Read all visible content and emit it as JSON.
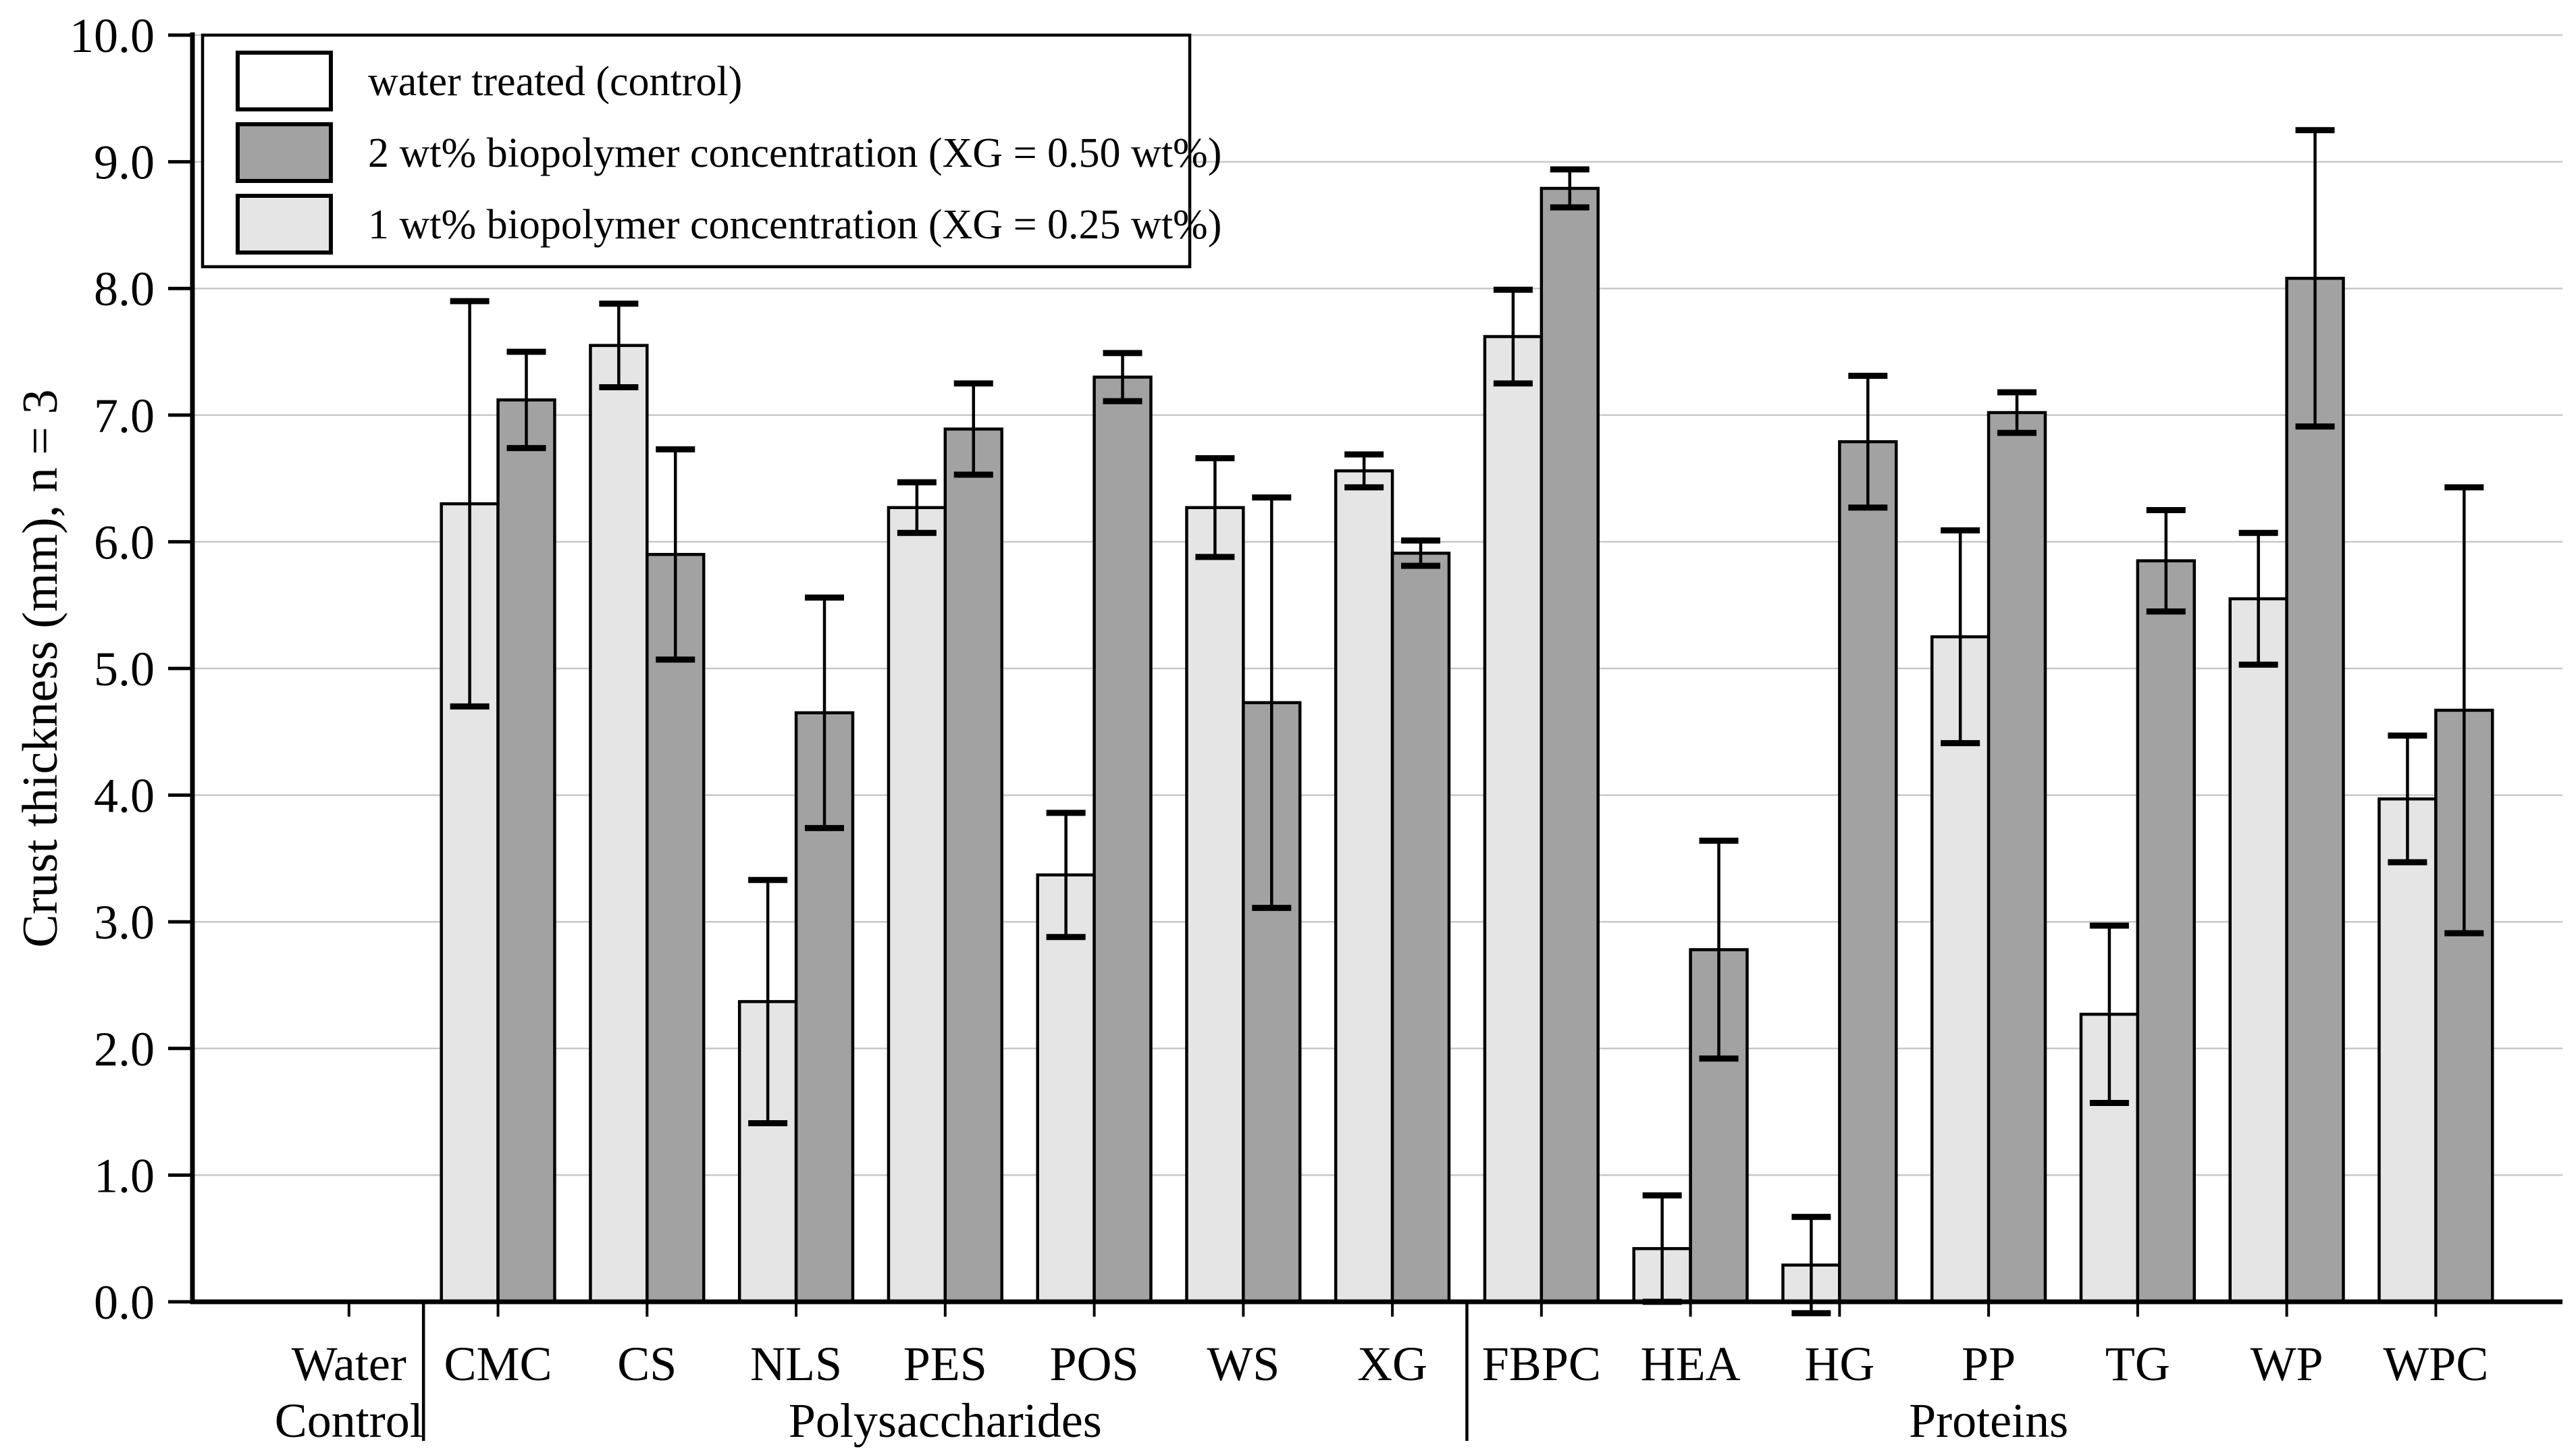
{
  "chart_data": {
    "type": "bar",
    "title": "",
    "xlabel": "",
    "ylabel": "Crust thickness (mm), n = 3",
    "ylim": [
      0,
      10
    ],
    "ytick_step": 1.0,
    "ytick_labels": [
      "0.0",
      "1.0",
      "2.0",
      "3.0",
      "4.0",
      "5.0",
      "6.0",
      "7.0",
      "8.0",
      "9.0",
      "10.0"
    ],
    "grid": true,
    "gridline_color": "#c8c8c8",
    "axis_color": "#000000",
    "bar_edge_color": "#000000",
    "error_bar_color": "#000000",
    "categories": [
      "Water\nControl",
      "CMC",
      "CS",
      "NLS",
      "PES",
      "POS",
      "WS",
      "XG",
      "FBPC",
      "HEA",
      "HG",
      "PP",
      "TG",
      "WP",
      "WPC"
    ],
    "group_labels": [
      {
        "label": "Polysaccharides",
        "start": 1,
        "end": 7
      },
      {
        "label": "Proteins",
        "start": 8,
        "end": 14
      }
    ],
    "separators_after_category": [
      0,
      7
    ],
    "legend": {
      "position": "top-left",
      "entries": [
        {
          "label": "water treated (control)",
          "color": "#ffffff"
        },
        {
          "label": "2 wt% biopolymer concentration (XG = 0.50 wt%)",
          "color": "#a2a2a2"
        },
        {
          "label": "1 wt% biopolymer concentration (XG = 0.25 wt%)",
          "color": "#e5e5e5"
        }
      ]
    },
    "series": [
      {
        "name": "water treated (control)",
        "color": "#ffffff",
        "slot": "center",
        "values": [
          0,
          null,
          null,
          null,
          null,
          null,
          null,
          null,
          null,
          null,
          null,
          null,
          null,
          null,
          null
        ],
        "errors": [
          0,
          null,
          null,
          null,
          null,
          null,
          null,
          null,
          null,
          null,
          null,
          null,
          null,
          null,
          null
        ]
      },
      {
        "name": "1 wt% biopolymer concentration (XG = 0.25 wt%)",
        "color": "#e5e5e5",
        "slot": "left",
        "values": [
          null,
          6.3,
          7.55,
          2.37,
          6.27,
          3.37,
          6.27,
          6.56,
          7.62,
          0.42,
          0.29,
          5.25,
          2.27,
          5.55,
          3.97
        ],
        "errors": [
          null,
          1.6,
          0.33,
          0.96,
          0.2,
          0.49,
          0.39,
          0.13,
          0.37,
          0.42,
          0.38,
          0.84,
          0.7,
          0.52,
          0.5
        ]
      },
      {
        "name": "2 wt% biopolymer concentration (XG = 0.50 wt%)",
        "color": "#a2a2a2",
        "slot": "right",
        "values": [
          null,
          7.12,
          5.9,
          4.65,
          6.89,
          7.3,
          4.73,
          5.91,
          8.79,
          2.78,
          6.79,
          7.02,
          5.85,
          8.08,
          4.67
        ],
        "errors": [
          null,
          0.38,
          0.83,
          0.91,
          0.36,
          0.19,
          1.62,
          0.1,
          0.15,
          0.86,
          0.52,
          0.16,
          0.4,
          1.17,
          1.76
        ]
      }
    ]
  }
}
